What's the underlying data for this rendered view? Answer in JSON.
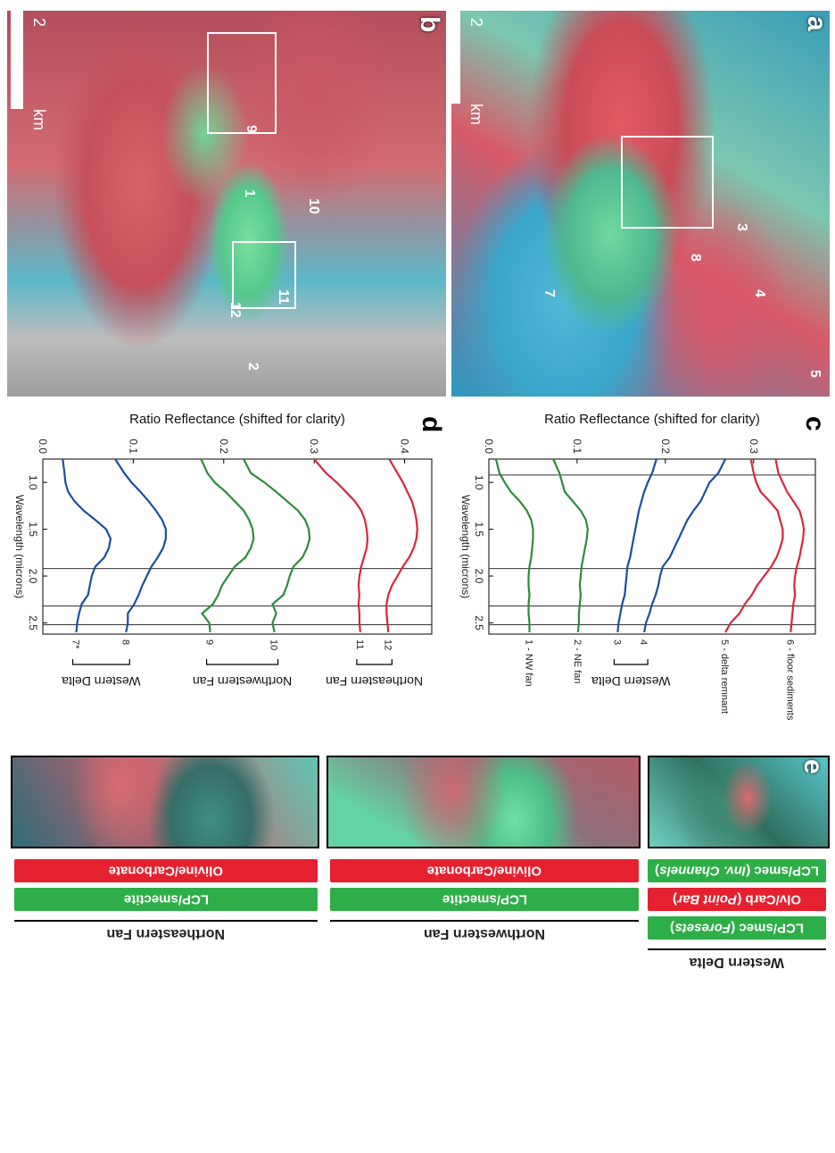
{
  "panels": {
    "a": {
      "letter": "a",
      "scale_label": "2",
      "scale_unit": "km",
      "markers": [
        "7",
        "8",
        "3",
        "4",
        "5"
      ]
    },
    "b": {
      "letter": "b",
      "scale_label": "2",
      "scale_unit": "km",
      "markers": [
        "9",
        "10",
        "1",
        "11",
        "12",
        "2"
      ]
    },
    "c": {
      "letter": "c"
    },
    "d": {
      "letter": "d"
    },
    "e": {
      "letter": "e"
    }
  },
  "chart_data": [
    {
      "panel": "c",
      "type": "line",
      "xlabel": "Wavelength (microns)",
      "ylabel": "Ratio Reflectance (shifted for clarity)",
      "xlim": [
        0.75,
        2.62
      ],
      "ylim": [
        0.0,
        0.37
      ],
      "xticks": [
        "1.0",
        "1.5",
        "2.0",
        "2.5"
      ],
      "yticks": [
        "0.0",
        "0.1",
        "0.2",
        "0.3"
      ],
      "vertical_lines": [
        0.92,
        1.92,
        2.32,
        2.52
      ],
      "groups": [
        {
          "label": "Western Delta",
          "series": [
            "4",
            "3"
          ]
        }
      ],
      "series": [
        {
          "name": "6 - floor sediments",
          "color": "#d8263c",
          "x": [
            0.75,
            0.9,
            1.0,
            1.1,
            1.2,
            1.3,
            1.4,
            1.5,
            1.6,
            1.7,
            1.8,
            1.9,
            2.0,
            2.1,
            2.2,
            2.3,
            2.4,
            2.5,
            2.6
          ],
          "y": [
            0.325,
            0.328,
            0.333,
            0.338,
            0.345,
            0.352,
            0.355,
            0.357,
            0.356,
            0.354,
            0.352,
            0.349,
            0.347,
            0.346,
            0.347,
            0.345,
            0.344,
            0.343,
            0.342
          ]
        },
        {
          "name": "5 - delta remnant",
          "color": "#d8263c",
          "x": [
            0.75,
            0.9,
            1.0,
            1.1,
            1.2,
            1.3,
            1.4,
            1.5,
            1.6,
            1.7,
            1.8,
            1.9,
            2.0,
            2.1,
            2.2,
            2.3,
            2.4,
            2.5,
            2.6
          ],
          "y": [
            0.297,
            0.3,
            0.303,
            0.308,
            0.318,
            0.327,
            0.33,
            0.333,
            0.333,
            0.33,
            0.326,
            0.32,
            0.312,
            0.304,
            0.298,
            0.29,
            0.284,
            0.274,
            0.268
          ]
        },
        {
          "name": "4",
          "color": "#1b4f9c",
          "x": [
            0.75,
            0.9,
            1.0,
            1.1,
            1.2,
            1.3,
            1.4,
            1.5,
            1.6,
            1.7,
            1.8,
            1.9,
            2.0,
            2.1,
            2.2,
            2.3,
            2.4,
            2.5,
            2.6
          ],
          "y": [
            0.268,
            0.26,
            0.25,
            0.245,
            0.24,
            0.232,
            0.225,
            0.22,
            0.215,
            0.21,
            0.205,
            0.197,
            0.194,
            0.192,
            0.189,
            0.185,
            0.182,
            0.178,
            0.176
          ]
        },
        {
          "name": "3",
          "color": "#1b4f9c",
          "x": [
            0.75,
            0.9,
            1.0,
            1.1,
            1.2,
            1.3,
            1.4,
            1.5,
            1.6,
            1.7,
            1.8,
            1.9,
            2.0,
            2.1,
            2.2,
            2.3,
            2.4,
            2.5,
            2.6
          ],
          "y": [
            0.19,
            0.185,
            0.18,
            0.176,
            0.173,
            0.17,
            0.168,
            0.166,
            0.164,
            0.162,
            0.16,
            0.157,
            0.156,
            0.155,
            0.154,
            0.151,
            0.149,
            0.147,
            0.146
          ]
        },
        {
          "name": "2 - NE fan",
          "color": "#2c8c3a",
          "x": [
            0.75,
            0.9,
            1.0,
            1.1,
            1.2,
            1.3,
            1.4,
            1.5,
            1.6,
            1.7,
            1.8,
            1.9,
            2.0,
            2.1,
            2.2,
            2.3,
            2.4,
            2.5,
            2.6
          ],
          "y": [
            0.073,
            0.08,
            0.083,
            0.086,
            0.095,
            0.104,
            0.11,
            0.112,
            0.111,
            0.109,
            0.107,
            0.105,
            0.104,
            0.103,
            0.104,
            0.103,
            0.102,
            0.102,
            0.101
          ]
        },
        {
          "name": "1 - NW fan",
          "color": "#2c8c3a",
          "x": [
            0.75,
            0.9,
            1.0,
            1.1,
            1.2,
            1.3,
            1.4,
            1.5,
            1.6,
            1.7,
            1.8,
            1.9,
            2.0,
            2.1,
            2.2,
            2.3,
            2.4,
            2.5,
            2.6
          ],
          "y": [
            0.008,
            0.012,
            0.018,
            0.025,
            0.035,
            0.043,
            0.048,
            0.05,
            0.05,
            0.049,
            0.048,
            0.046,
            0.045,
            0.045,
            0.046,
            0.045,
            0.045,
            0.046,
            0.046
          ]
        }
      ]
    },
    {
      "panel": "d",
      "type": "line",
      "xlabel": "Wavelength (microns)",
      "ylabel": "Ratio Reflectance (shifted for clarity)",
      "xlim": [
        0.75,
        2.62
      ],
      "ylim": [
        0.0,
        0.43
      ],
      "xticks": [
        "1.0",
        "1.5",
        "2.0",
        "2.5"
      ],
      "yticks": [
        "0.0",
        "0.1",
        "0.2",
        "0.3",
        "0.4"
      ],
      "vertical_lines": [
        1.92,
        2.32,
        2.52
      ],
      "groups": [
        {
          "label": "Northeastern Fan",
          "series": [
            "12",
            "11"
          ]
        },
        {
          "label": "Northwestern Fan",
          "series": [
            "10",
            "9"
          ]
        },
        {
          "label": "Western Delta",
          "series": [
            "8",
            "7*"
          ]
        }
      ],
      "series": [
        {
          "name": "12",
          "color": "#d8263c",
          "x": [
            0.75,
            0.9,
            1.0,
            1.1,
            1.2,
            1.3,
            1.4,
            1.5,
            1.6,
            1.7,
            1.8,
            1.9,
            2.0,
            2.1,
            2.2,
            2.3,
            2.4,
            2.5,
            2.6
          ],
          "y": [
            0.383,
            0.392,
            0.398,
            0.403,
            0.408,
            0.411,
            0.413,
            0.414,
            0.413,
            0.41,
            0.405,
            0.398,
            0.392,
            0.386,
            0.382,
            0.38,
            0.38,
            0.381,
            0.382
          ]
        },
        {
          "name": "11",
          "color": "#d8263c",
          "x": [
            0.75,
            0.9,
            1.0,
            1.1,
            1.2,
            1.3,
            1.4,
            1.5,
            1.6,
            1.7,
            1.8,
            1.9,
            2.0,
            2.1,
            2.2,
            2.3,
            2.4,
            2.5,
            2.6
          ],
          "y": [
            0.3,
            0.313,
            0.325,
            0.335,
            0.345,
            0.352,
            0.356,
            0.358,
            0.359,
            0.358,
            0.355,
            0.352,
            0.35,
            0.349,
            0.35,
            0.349,
            0.35,
            0.35,
            0.351
          ]
        },
        {
          "name": "10",
          "color": "#2c8c3a",
          "x": [
            0.75,
            0.9,
            1.0,
            1.1,
            1.2,
            1.3,
            1.4,
            1.5,
            1.6,
            1.7,
            1.8,
            1.9,
            2.0,
            2.1,
            2.2,
            2.3,
            2.4,
            2.5,
            2.6
          ],
          "y": [
            0.222,
            0.23,
            0.245,
            0.258,
            0.27,
            0.282,
            0.29,
            0.294,
            0.295,
            0.292,
            0.287,
            0.277,
            0.273,
            0.27,
            0.266,
            0.254,
            0.258,
            0.254,
            0.256
          ]
        },
        {
          "name": "9",
          "color": "#2c8c3a",
          "x": [
            0.75,
            0.9,
            1.0,
            1.1,
            1.2,
            1.3,
            1.4,
            1.5,
            1.6,
            1.7,
            1.8,
            1.9,
            2.0,
            2.1,
            2.2,
            2.3,
            2.4,
            2.5,
            2.6
          ],
          "y": [
            0.175,
            0.182,
            0.19,
            0.202,
            0.212,
            0.222,
            0.228,
            0.232,
            0.233,
            0.23,
            0.224,
            0.212,
            0.205,
            0.198,
            0.194,
            0.188,
            0.176,
            0.184,
            0.185
          ]
        },
        {
          "name": "8",
          "color": "#1b4f9c",
          "x": [
            0.75,
            0.9,
            1.0,
            1.1,
            1.2,
            1.3,
            1.4,
            1.5,
            1.6,
            1.7,
            1.8,
            1.9,
            2.0,
            2.1,
            2.2,
            2.3,
            2.4,
            2.5,
            2.6
          ],
          "y": [
            0.08,
            0.09,
            0.098,
            0.108,
            0.117,
            0.125,
            0.132,
            0.136,
            0.136,
            0.133,
            0.127,
            0.12,
            0.115,
            0.11,
            0.106,
            0.101,
            0.094,
            0.094,
            0.092
          ]
        },
        {
          "name": "7*",
          "color": "#1b4f9c",
          "x": [
            0.75,
            0.9,
            1.0,
            1.1,
            1.2,
            1.3,
            1.4,
            1.5,
            1.6,
            1.7,
            1.8,
            1.9,
            2.0,
            2.1,
            2.2,
            2.3,
            2.4,
            2.5,
            2.6
          ],
          "y": [
            0.022,
            0.024,
            0.025,
            0.028,
            0.035,
            0.045,
            0.058,
            0.07,
            0.075,
            0.073,
            0.068,
            0.058,
            0.054,
            0.052,
            0.05,
            0.043,
            0.04,
            0.038,
            0.037
          ]
        }
      ]
    }
  ],
  "panel_e": {
    "columns": [
      {
        "site": "Western Delta",
        "bars": [
          {
            "kind": "green",
            "prefix": "LCP/smec (",
            "italic": "Inv. Channels",
            "suffix": ")"
          },
          {
            "kind": "red",
            "prefix": "Olv/Carb (",
            "italic": "Point Bar",
            "suffix": ")"
          },
          {
            "kind": "green",
            "prefix": "LCP/smec (",
            "italic": "Foresets",
            "suffix": ")"
          }
        ]
      },
      {
        "site": "Northwestern Fan",
        "bars": [
          {
            "kind": "red",
            "prefix": "Olivine/Carbonate",
            "italic": "",
            "suffix": ""
          },
          {
            "kind": "green",
            "prefix": "LCP/smectite",
            "italic": "",
            "suffix": ""
          }
        ]
      },
      {
        "site": "Northeastern Fan",
        "bars": [
          {
            "kind": "red",
            "prefix": "Olivine/Carbonate",
            "italic": "",
            "suffix": ""
          },
          {
            "kind": "green",
            "prefix": "LCP/smectite",
            "italic": "",
            "suffix": ""
          }
        ]
      }
    ]
  }
}
